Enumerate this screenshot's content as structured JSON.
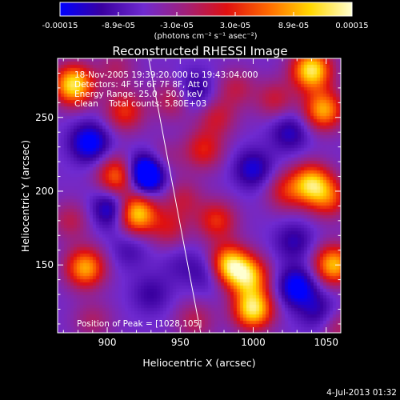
{
  "chart_data": {
    "type": "heatmap",
    "title": "Reconstructed RHESSI Image",
    "xlabel": "Heliocentric X (arcsec)",
    "ylabel": "Heliocentric Y (arcsec)",
    "xlim": [
      866,
      1060
    ],
    "ylim": [
      104,
      290
    ],
    "xticks": [
      900,
      950,
      1000,
      1050
    ],
    "yticks": [
      150,
      200,
      250
    ],
    "colorbar": {
      "min": -0.00015,
      "max": 0.00015,
      "tick_labels": [
        "-0.00015",
        "-8.9e-05",
        "-3.0e-05",
        "3.0e-05",
        "8.9e-05",
        "0.00015"
      ],
      "unit_label": "(photons cm⁻² s⁻¹ asec⁻²)",
      "colormap_stops": [
        "#0000ff",
        "#3a00a0",
        "#6f2ad0",
        "#a0207a",
        "#e01010",
        "#ff6a00",
        "#ffd700",
        "#ffffd0"
      ]
    },
    "annotations": [
      "18-Nov-2005 19:39:20.000 to 19:43:04.000",
      "Detectors: 4F 5F 6F 7F 8F, Att 0",
      "Energy Range: 25.0 - 50.0 keV",
      "Clean    Total counts: 5.80E+03"
    ],
    "peak_label": "Position of Peak = [1028,105]",
    "limb_line": [
      [
        928,
        292
      ],
      [
        964,
        104
      ]
    ],
    "sources": [
      {
        "x": 877,
        "y": 272,
        "v": 1.0
      },
      {
        "x": 888,
        "y": 233,
        "v": -0.55
      },
      {
        "x": 885,
        "y": 148,
        "v": 0.8
      },
      {
        "x": 875,
        "y": 180,
        "v": 0.3
      },
      {
        "x": 890,
        "y": 112,
        "v": 0.25
      },
      {
        "x": 906,
        "y": 283,
        "v": 0.25
      },
      {
        "x": 912,
        "y": 254,
        "v": 0.5
      },
      {
        "x": 907,
        "y": 210,
        "v": 0.7
      },
      {
        "x": 903,
        "y": 188,
        "v": -0.5
      },
      {
        "x": 920,
        "y": 185,
        "v": 0.95
      },
      {
        "x": 927,
        "y": 212,
        "v": -0.95
      },
      {
        "x": 942,
        "y": 175,
        "v": 0.35
      },
      {
        "x": 915,
        "y": 160,
        "v": -0.2
      },
      {
        "x": 930,
        "y": 130,
        "v": -0.25
      },
      {
        "x": 937,
        "y": 220,
        "v": 0.3
      },
      {
        "x": 945,
        "y": 262,
        "v": 0.35
      },
      {
        "x": 952,
        "y": 195,
        "v": 0.3
      },
      {
        "x": 966,
        "y": 228,
        "v": 0.45
      },
      {
        "x": 960,
        "y": 268,
        "v": -0.35
      },
      {
        "x": 975,
        "y": 250,
        "v": 0.35
      },
      {
        "x": 975,
        "y": 180,
        "v": 0.5
      },
      {
        "x": 970,
        "y": 145,
        "v": -0.3
      },
      {
        "x": 983,
        "y": 150,
        "v": 0.95
      },
      {
        "x": 997,
        "y": 142,
        "v": 0.8
      },
      {
        "x": 1000,
        "y": 120,
        "v": 1.0
      },
      {
        "x": 988,
        "y": 270,
        "v": 0.3
      },
      {
        "x": 1000,
        "y": 215,
        "v": -0.4
      },
      {
        "x": 1015,
        "y": 262,
        "v": 0.35
      },
      {
        "x": 1025,
        "y": 240,
        "v": -0.35
      },
      {
        "x": 1022,
        "y": 200,
        "v": 0.4
      },
      {
        "x": 1028,
        "y": 166,
        "v": -0.3
      },
      {
        "x": 1030,
        "y": 135,
        "v": -0.55
      },
      {
        "x": 1040,
        "y": 282,
        "v": 1.0
      },
      {
        "x": 1048,
        "y": 255,
        "v": 0.8
      },
      {
        "x": 1040,
        "y": 205,
        "v": 0.85
      },
      {
        "x": 1052,
        "y": 195,
        "v": 0.5
      },
      {
        "x": 1055,
        "y": 150,
        "v": 0.85
      },
      {
        "x": 1045,
        "y": 118,
        "v": -0.3
      },
      {
        "x": 1058,
        "y": 108,
        "v": 0.3
      },
      {
        "x": 960,
        "y": 112,
        "v": 0.3
      },
      {
        "x": 950,
        "y": 150,
        "v": -0.15
      }
    ]
  },
  "footer": {
    "timestamp": "4-Jul-2013 01:32"
  }
}
